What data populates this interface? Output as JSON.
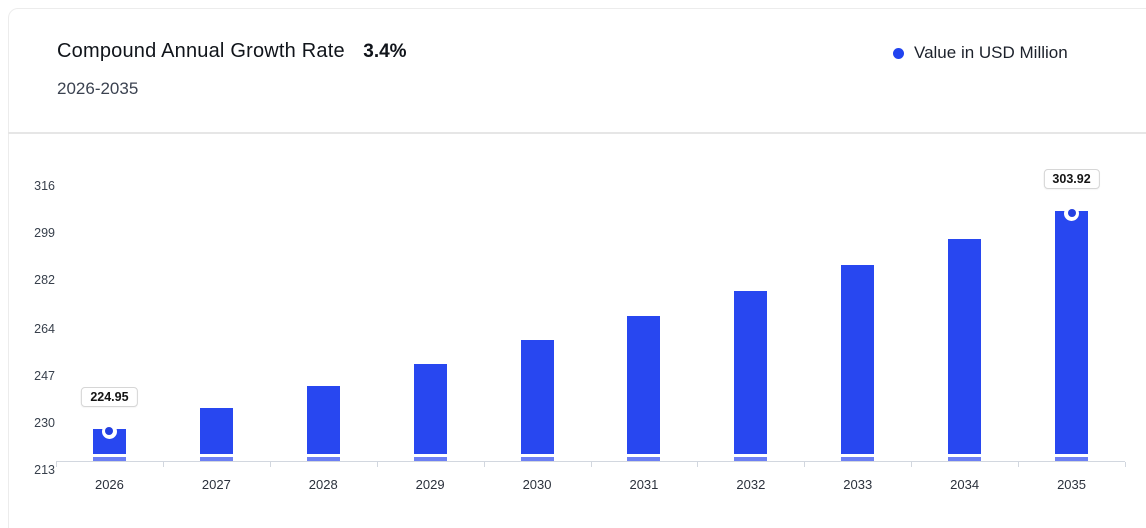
{
  "header": {
    "title": "Compound Annual Growth Rate",
    "cagr_value": "3.4%",
    "subtitle": "2026-2035",
    "legend": {
      "label": "Value in USD Million",
      "color": "#2143ef"
    }
  },
  "chart_data": {
    "type": "bar",
    "title": "Compound Annual Growth Rate 3.4%",
    "subtitle": "2026-2035",
    "series_name": "Value in USD Million",
    "categories": [
      "2026",
      "2027",
      "2028",
      "2029",
      "2030",
      "2031",
      "2032",
      "2033",
      "2034",
      "2035"
    ],
    "values": [
      224.95,
      232.6,
      240.51,
      248.68,
      257.14,
      265.88,
      274.92,
      284.27,
      293.93,
      303.92
    ],
    "value_labels": {
      "first": "224.95",
      "last": "303.92"
    },
    "marked_points": [
      "2026",
      "2035"
    ],
    "xlabel": "",
    "ylabel": "",
    "ylim": [
      213,
      316
    ],
    "yticks": [
      213,
      230,
      247,
      264,
      282,
      299,
      316
    ],
    "grid": false,
    "legend_position": "top-right",
    "bar_color": "#2847f0",
    "bar_base_strip_color": "#6d80f4",
    "axis_color": "#d2d7df"
  }
}
